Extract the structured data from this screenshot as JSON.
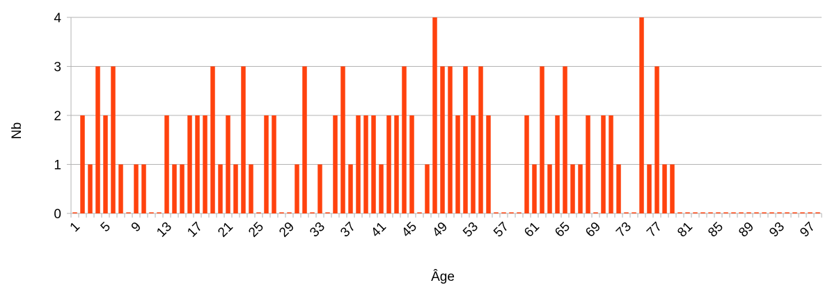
{
  "chart_data": {
    "type": "bar",
    "xlabel": "Âge",
    "ylabel": "Nb",
    "ylim": [
      0,
      4
    ],
    "yticks": [
      0,
      1,
      2,
      3,
      4
    ],
    "grid": true,
    "bar_color": "#ff420e",
    "grid_color": "#b3b3b3",
    "categories": [
      1,
      2,
      3,
      4,
      5,
      6,
      7,
      8,
      9,
      10,
      11,
      12,
      13,
      14,
      15,
      16,
      17,
      18,
      19,
      20,
      21,
      22,
      23,
      24,
      25,
      26,
      27,
      28,
      29,
      30,
      31,
      32,
      33,
      34,
      35,
      36,
      37,
      38,
      39,
      40,
      41,
      42,
      43,
      44,
      45,
      46,
      47,
      48,
      49,
      50,
      51,
      52,
      53,
      54,
      55,
      56,
      57,
      58,
      59,
      60,
      61,
      62,
      63,
      64,
      65,
      66,
      67,
      68,
      69,
      70,
      71,
      72,
      73,
      74,
      75,
      76,
      77,
      78,
      79,
      80,
      81,
      82,
      83,
      84,
      85,
      86,
      87,
      88,
      89,
      90,
      91,
      92,
      93,
      94,
      95,
      96,
      97,
      98
    ],
    "tick_labels": [
      "1",
      "5",
      "9",
      "13",
      "17",
      "21",
      "25",
      "29",
      "33",
      "37",
      "41",
      "45",
      "49",
      "53",
      "57",
      "61",
      "65",
      "69",
      "73",
      "77",
      "81",
      "85",
      "89",
      "93",
      "97"
    ],
    "values": [
      0,
      2,
      1,
      3,
      2,
      3,
      1,
      0,
      1,
      1,
      0,
      0,
      2,
      1,
      1,
      2,
      2,
      2,
      3,
      1,
      2,
      1,
      3,
      1,
      0,
      2,
      2,
      0,
      0,
      1,
      3,
      0,
      1,
      0,
      2,
      3,
      1,
      2,
      2,
      2,
      1,
      2,
      2,
      3,
      2,
      0,
      1,
      4,
      3,
      3,
      2,
      3,
      2,
      3,
      2,
      0,
      0,
      0,
      0,
      2,
      1,
      3,
      1,
      2,
      3,
      1,
      1,
      2,
      0,
      2,
      2,
      1,
      0,
      0,
      4,
      1,
      3,
      1,
      1,
      0,
      0,
      0,
      0,
      0,
      0,
      0,
      0,
      0,
      0,
      0,
      0,
      0,
      0,
      0,
      0,
      0,
      0,
      0
    ]
  }
}
